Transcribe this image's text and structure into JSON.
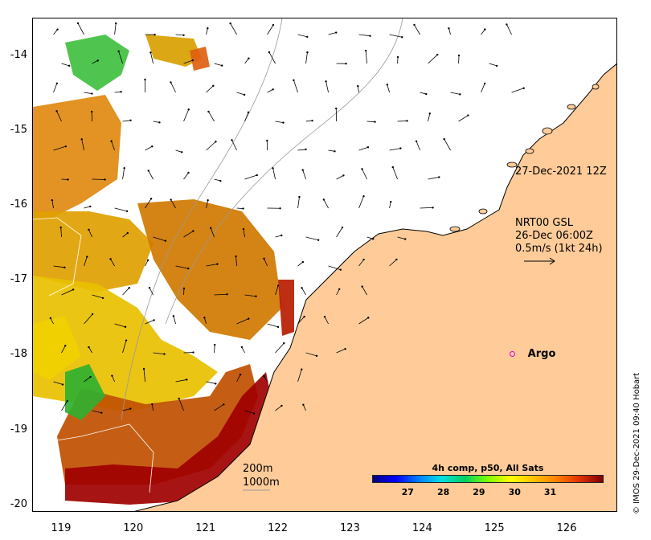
{
  "map": {
    "lon_range": [
      118.6,
      126.7
    ],
    "lat_range": [
      -20.1,
      -13.5
    ],
    "lon_ticks": [
      119,
      120,
      121,
      122,
      123,
      124,
      125,
      126
    ],
    "lat_ticks": [
      -14,
      -15,
      -16,
      -17,
      -18,
      -19,
      -20
    ],
    "lon_tick_labels": [
      "119",
      "120",
      "121",
      "122",
      "123",
      "124",
      "125",
      "126"
    ],
    "lat_tick_labels": [
      "-14",
      "-15",
      "-16",
      "-17",
      "-18",
      "-19",
      "-20"
    ],
    "land_color": "#ffcc99",
    "coast_color": "#000000",
    "contour_color": "#999999"
  },
  "annotations": {
    "timestamp": "27-Dec-2021 12Z",
    "current_source": "NRT00 GSL",
    "current_time": "26-Dec 06:00Z",
    "current_scale": "0.5m/s (1kt 24h)",
    "contour_200": "200m",
    "contour_1000": "1000m",
    "argo_label": "Argo",
    "argo_lon": 125.25,
    "argo_lat": -18.0,
    "argo_color": "#e000e0",
    "credit": "© IMOS 29-Dec-2021 09:40 Hobart"
  },
  "colorbar": {
    "title": "4h comp, p50, All Sats",
    "min": 26,
    "max": 32.5,
    "tick_values": [
      27,
      28,
      29,
      30,
      31
    ],
    "tick_labels": [
      "27",
      "28",
      "29",
      "30",
      "31"
    ],
    "colors": [
      "#00007f",
      "#0000ff",
      "#007fff",
      "#00e0e0",
      "#00d060",
      "#7fff00",
      "#ffff00",
      "#ffc000",
      "#ff7f00",
      "#e03000",
      "#7f0000"
    ]
  }
}
